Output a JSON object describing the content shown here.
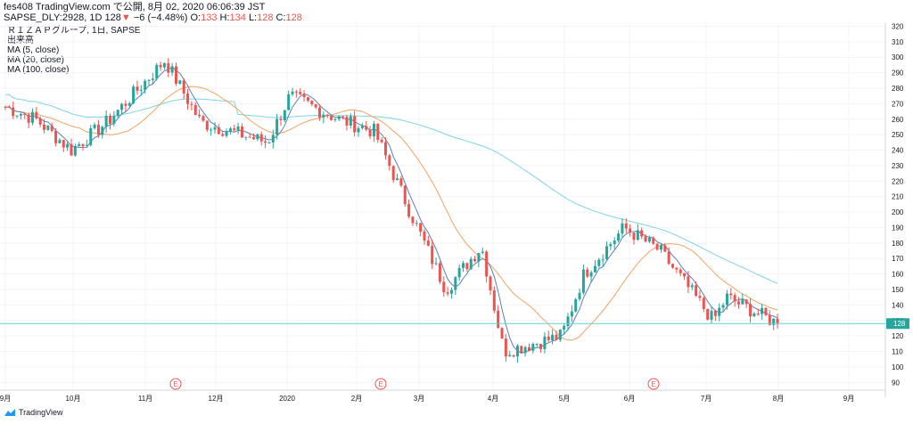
{
  "header": {
    "line1": "fes408 TradingView.com で公開, 8月 02, 2020 06:06:39 JST",
    "symbol": "SAPSE_DLY:2928, 1D",
    "last": "128",
    "change_arrow": "▼",
    "change": "−6 (−4.48%)",
    "o_label": "O:",
    "o_val": "133",
    "h_label": "H:",
    "h_val": "134",
    "l_label": "L:",
    "l_val": "128",
    "c_label": "C:",
    "c_val": "128"
  },
  "legend": {
    "series_title": "ＲＩＺＡＰグループ, 1日, SAPSE",
    "volume": "出来高",
    "ma5": "MA (5, close)",
    "ma20": "MA (20, close)",
    "ma100": "MA (100, close)"
  },
  "brand": {
    "name": "TradingView",
    "icon": "tradingview-logo-icon"
  },
  "colors": {
    "up": "#26a69a",
    "down": "#ef5350",
    "ma5": "#5b7fbd",
    "ma20": "#f4a261",
    "ma100": "#7fd3e6",
    "price_line": "#5ed0dc",
    "event": "#ef5350"
  },
  "chart_data": {
    "type": "candlestick",
    "title": "ＲＩＺＡＰグループ, 1日, SAPSE",
    "ylim": [
      85,
      322
    ],
    "y_ticks": [
      90,
      100,
      110,
      120,
      130,
      140,
      150,
      160,
      170,
      180,
      190,
      200,
      210,
      220,
      230,
      240,
      250,
      260,
      270,
      280,
      290,
      300,
      310,
      320
    ],
    "x_ticks": [
      "9月",
      "10月",
      "11月",
      "12月",
      "2020",
      "2月",
      "3月",
      "4月",
      "5月",
      "6月",
      "7月",
      "8月",
      "9月"
    ],
    "last_price": 128,
    "events": [
      {
        "label": "E",
        "month": "11月"
      },
      {
        "label": "E",
        "month": "2月"
      },
      {
        "label": "E",
        "month": "6月"
      }
    ],
    "price_points": [
      {
        "month": "9月",
        "v": 268
      },
      {
        "month": "10月",
        "v": 260
      },
      {
        "month": "10月",
        "v": 240
      },
      {
        "month": "11月",
        "v": 258
      },
      {
        "month": "11月",
        "v": 298
      },
      {
        "month": "12月",
        "v": 258
      },
      {
        "month": "2020",
        "v": 245
      },
      {
        "month": "2020",
        "v": 275
      },
      {
        "month": "2月",
        "v": 260
      },
      {
        "month": "2月",
        "v": 252
      },
      {
        "month": "3月",
        "v": 200
      },
      {
        "month": "3月",
        "v": 150
      },
      {
        "month": "4月",
        "v": 178
      },
      {
        "month": "4月",
        "v": 110
      },
      {
        "month": "5月",
        "v": 120
      },
      {
        "month": "5月",
        "v": 160
      },
      {
        "month": "6月",
        "v": 190
      },
      {
        "month": "6月",
        "v": 175
      },
      {
        "month": "7月",
        "v": 130
      },
      {
        "month": "7月",
        "v": 145
      },
      {
        "month": "8月",
        "v": 128
      }
    ],
    "series": [
      {
        "name": "MA (5, close)"
      },
      {
        "name": "MA (20, close)"
      },
      {
        "name": "MA (100, close)"
      }
    ]
  }
}
